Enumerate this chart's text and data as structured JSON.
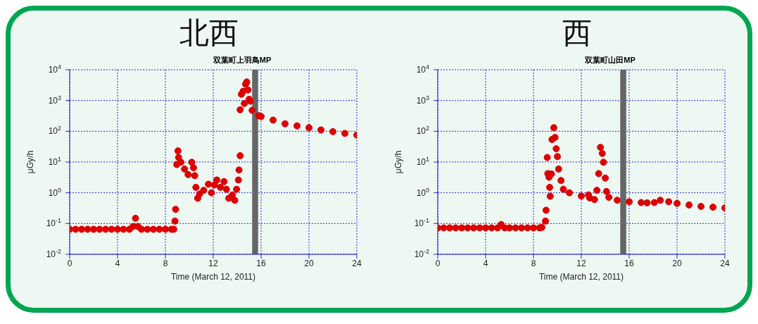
{
  "chart_data": [
    {
      "type": "scatter",
      "title": "北西",
      "subtitle": "双葉町上羽鳥MP",
      "xlabel": "Time (March 12, 2011)",
      "ylabel": "μGy/h",
      "log": "y",
      "grid": true,
      "marker": "circle",
      "xlim": [
        0,
        24
      ],
      "xticks": [
        0,
        4,
        8,
        12,
        16,
        20,
        24
      ],
      "ylim": [
        0.01,
        10000
      ],
      "yticks": [
        {
          "value": 0.01,
          "label": "10$^{-2}$"
        },
        {
          "value": 0.1,
          "label": "10$^{-1}$"
        },
        {
          "value": 1,
          "label": "10$^{0}$"
        },
        {
          "value": 10,
          "label": "10$^{1}$"
        },
        {
          "value": 100,
          "label": "10$^{2}$"
        },
        {
          "value": 1000,
          "label": "10$^{3}$"
        },
        {
          "value": 10000,
          "label": "10$^{4}$"
        }
      ],
      "bands": [
        {
          "axis": "x",
          "from": 15.25,
          "to": 15.75,
          "color": "#666666"
        }
      ],
      "series": [
        {
          "color": "#dd0000",
          "x": [
            0,
            0.5,
            1,
            1.5,
            2,
            2.5,
            3,
            3.5,
            4,
            4.5,
            5,
            5.3,
            5.5,
            5.7,
            6,
            6.5,
            7,
            7.5,
            8,
            8.5,
            8.7,
            8.8,
            8.85,
            8.95,
            9.05,
            9.1,
            9.3,
            9.6,
            9.9,
            10.2,
            10.35,
            10.45,
            10.55,
            10.7,
            10.85,
            11.2,
            11.6,
            11.85,
            12.1,
            12.3,
            12.6,
            12.9,
            13.1,
            13.3,
            13.6,
            13.8,
            13.95,
            14.1,
            14.15,
            14.25,
            14.25,
            14.35,
            14.5,
            14.6,
            14.7,
            14.8,
            14.9,
            15,
            15.1,
            15.25,
            15.8,
            16,
            17,
            18,
            19,
            20,
            21,
            22,
            23,
            24
          ],
          "values": [
            0.065,
            0.065,
            0.065,
            0.065,
            0.065,
            0.065,
            0.065,
            0.065,
            0.065,
            0.065,
            0.065,
            0.08,
            0.148,
            0.08,
            0.065,
            0.065,
            0.065,
            0.065,
            0.065,
            0.065,
            0.065,
            0.12,
            0.29,
            8.3,
            23,
            14,
            9.8,
            5.9,
            3.9,
            9.8,
            6.5,
            3.6,
            1.5,
            0.66,
            0.91,
            1.2,
            1.9,
            1,
            1.8,
            2.6,
            1.5,
            2.3,
            1.3,
            0.66,
            0.85,
            0.57,
            1.3,
            2.6,
            5.5,
            16,
            500,
            1600,
            2000,
            800,
            3400,
            4000,
            2200,
            1100,
            950,
            480,
            320,
            300,
            230,
            175,
            150,
            130,
            110,
            97,
            85,
            75
          ]
        }
      ]
    },
    {
      "type": "scatter",
      "title": "西",
      "subtitle": "双葉町山田MP",
      "xlabel": "Time (March 12, 2011)",
      "ylabel": "μGy/h",
      "log": "y",
      "grid": true,
      "marker": "circle",
      "xlim": [
        0,
        24
      ],
      "xticks": [
        0,
        4,
        8,
        12,
        16,
        20,
        24
      ],
      "ylim": [
        0.01,
        10000
      ],
      "yticks": [
        {
          "value": 0.01,
          "label": "10$^{-2}$"
        },
        {
          "value": 0.1,
          "label": "10$^{-1}$"
        },
        {
          "value": 1,
          "label": "10$^{0}$"
        },
        {
          "value": 10,
          "label": "10$^{1}$"
        },
        {
          "value": 100,
          "label": "10$^{2}$"
        },
        {
          "value": 1000,
          "label": "10$^{3}$"
        },
        {
          "value": 10000,
          "label": "10$^{4}$"
        }
      ],
      "bands": [
        {
          "axis": "x",
          "from": 15.25,
          "to": 15.75,
          "color": "#666666"
        }
      ],
      "series": [
        {
          "color": "#dd0000",
          "x": [
            0,
            0.5,
            1,
            1.5,
            2,
            2.5,
            3,
            3.5,
            4,
            4.5,
            5,
            5.3,
            5.6,
            6,
            6.5,
            7,
            7.5,
            8,
            8.5,
            8.7,
            9,
            9.05,
            9.15,
            9.2,
            9.3,
            9.35,
            9.4,
            9.5,
            9.55,
            9.7,
            9.8,
            9.9,
            10,
            10.1,
            10.3,
            10.5,
            11,
            12,
            12.6,
            12.7,
            13.1,
            13.3,
            13.45,
            13.6,
            13.75,
            13.85,
            14,
            14.1,
            14.3,
            15,
            16,
            17,
            17.5,
            18.1,
            18.6,
            19.3,
            20,
            21,
            22,
            23,
            24
          ],
          "values": [
            0.072,
            0.072,
            0.072,
            0.072,
            0.072,
            0.072,
            0.072,
            0.072,
            0.072,
            0.072,
            0.072,
            0.093,
            0.072,
            0.072,
            0.072,
            0.072,
            0.072,
            0.072,
            0.072,
            0.075,
            0.12,
            0.27,
            14,
            4.2,
            3.2,
            1.5,
            0.77,
            4.1,
            54,
            130,
            63,
            27,
            15,
            5.9,
            2.5,
            1.3,
            1,
            0.78,
            0.85,
            0.68,
            0.6,
            1.2,
            4.2,
            30,
            19,
            9.8,
            3,
            1.1,
            0.71,
            0.57,
            0.51,
            0.48,
            0.47,
            0.48,
            0.57,
            0.51,
            0.45,
            0.4,
            0.36,
            0.34,
            0.32
          ]
        }
      ]
    }
  ]
}
